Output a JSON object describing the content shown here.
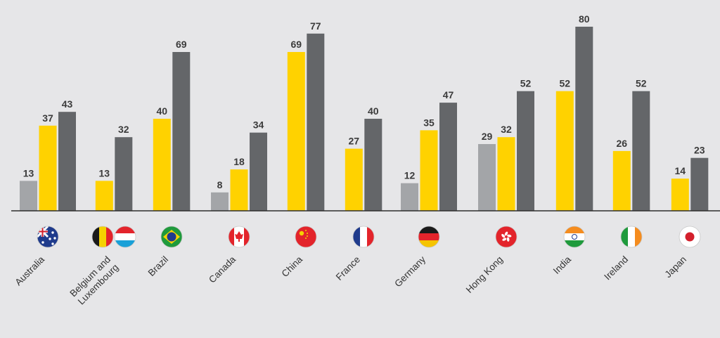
{
  "chart_data": {
    "type": "bar",
    "title": "",
    "xlabel": "",
    "ylabel": "",
    "ylim": [
      0,
      85
    ],
    "grid": false,
    "legend": "none",
    "categories": [
      "Australia",
      "Belgium and Luxembourg",
      "Brazil",
      "Canada",
      "China",
      "France",
      "Germany",
      "Hong Kong",
      "India",
      "Ireland",
      "Japan"
    ],
    "category_lines": [
      [
        "Australia"
      ],
      [
        "Belgium and",
        "Luxembourg"
      ],
      [
        "Brazil"
      ],
      [
        "Canada"
      ],
      [
        "China"
      ],
      [
        "France"
      ],
      [
        "Germany"
      ],
      [
        "Hong Kong"
      ],
      [
        "India"
      ],
      [
        "Ireland"
      ],
      [
        "Japan"
      ]
    ],
    "flags": [
      [
        "australia-flag-icon"
      ],
      [
        "belgium-flag-icon",
        "luxembourg-flag-icon"
      ],
      [
        "brazil-flag-icon"
      ],
      [
        "canada-flag-icon"
      ],
      [
        "china-flag-icon"
      ],
      [
        "france-flag-icon"
      ],
      [
        "germany-flag-icon"
      ],
      [
        "hong-kong-flag-icon"
      ],
      [
        "india-flag-icon"
      ],
      [
        "ireland-flag-icon"
      ],
      [
        "japan-flag-icon"
      ]
    ],
    "series": [
      {
        "color": "#a3a5a8",
        "values": [
          13,
          null,
          null,
          8,
          null,
          null,
          12,
          29,
          null,
          null,
          null
        ]
      },
      {
        "color": "#ffd200",
        "values": [
          37,
          13,
          40,
          18,
          69,
          27,
          35,
          32,
          52,
          26,
          14
        ]
      },
      {
        "color": "#646669",
        "values": [
          43,
          32,
          69,
          34,
          77,
          40,
          47,
          52,
          80,
          52,
          23
        ]
      }
    ]
  },
  "colors": {
    "background": "#e6e6e8",
    "light_gray": "#a3a5a8",
    "yellow": "#ffd200",
    "dark_gray": "#646669",
    "baseline": "#2e2e2e"
  }
}
